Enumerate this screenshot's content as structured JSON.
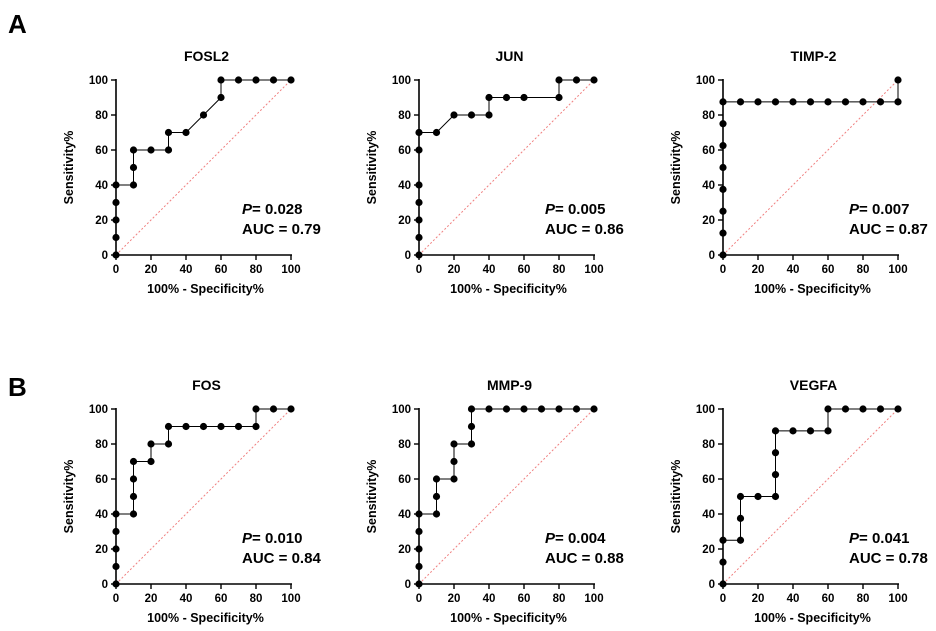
{
  "panels": [
    {
      "letter": "A"
    },
    {
      "letter": "B"
    }
  ],
  "chart_data": [
    {
      "type": "line",
      "panel": "A",
      "title": "FOSL2",
      "xlabel": "100% - Specificity%",
      "ylabel": "Sensitivity%",
      "xlim": [
        0,
        100
      ],
      "ylim": [
        0,
        100
      ],
      "xticks": [
        0,
        20,
        40,
        60,
        80,
        100
      ],
      "yticks": [
        0,
        20,
        40,
        60,
        80,
        100
      ],
      "series": [
        {
          "x": [
            0,
            0,
            0,
            0,
            0,
            10,
            10,
            10,
            20,
            30,
            30,
            40,
            50,
            60,
            60,
            70,
            80,
            90,
            100
          ],
          "y": [
            0,
            10,
            20,
            30,
            40,
            40,
            50,
            60,
            60,
            60,
            70,
            70,
            80,
            90,
            100,
            100,
            100,
            100,
            100
          ]
        }
      ],
      "reference_line": {
        "x": [
          0,
          100
        ],
        "y": [
          0,
          100
        ]
      },
      "p_label": "P",
      "p_value": "= 0.028",
      "auc_label": "AUC = 0.79"
    },
    {
      "type": "line",
      "panel": "A",
      "title": "JUN",
      "xlabel": "100% - Specificity%",
      "ylabel": "Sensitivity%",
      "xlim": [
        0,
        100
      ],
      "ylim": [
        0,
        100
      ],
      "xticks": [
        0,
        20,
        40,
        60,
        80,
        100
      ],
      "yticks": [
        0,
        20,
        40,
        60,
        80,
        100
      ],
      "series": [
        {
          "x": [
            0,
            0,
            0,
            0,
            0,
            0,
            0,
            10,
            20,
            30,
            40,
            40,
            50,
            60,
            80,
            80,
            90,
            100
          ],
          "y": [
            0,
            10,
            20,
            30,
            40,
            60,
            70,
            70,
            80,
            80,
            80,
            90,
            90,
            90,
            90,
            100,
            100,
            100
          ]
        }
      ],
      "reference_line": {
        "x": [
          0,
          100
        ],
        "y": [
          0,
          100
        ]
      },
      "p_label": "P",
      "p_value": "= 0.005",
      "auc_label": "AUC = 0.86"
    },
    {
      "type": "line",
      "panel": "A",
      "title": "TIMP-2",
      "xlabel": "100% - Specificity%",
      "ylabel": "Sensitivity%",
      "xlim": [
        0,
        100
      ],
      "ylim": [
        0,
        100
      ],
      "xticks": [
        0,
        20,
        40,
        60,
        80,
        100
      ],
      "yticks": [
        0,
        20,
        40,
        60,
        80,
        100
      ],
      "series": [
        {
          "x": [
            0,
            0,
            0,
            0,
            0,
            0,
            0,
            0,
            10,
            20,
            30,
            40,
            50,
            60,
            70,
            80,
            90,
            100,
            100
          ],
          "y": [
            0,
            12.5,
            25,
            37.5,
            50,
            62.5,
            75,
            87.5,
            87.5,
            87.5,
            87.5,
            87.5,
            87.5,
            87.5,
            87.5,
            87.5,
            87.5,
            87.5,
            100
          ]
        }
      ],
      "reference_line": {
        "x": [
          0,
          100
        ],
        "y": [
          0,
          100
        ]
      },
      "p_label": "P",
      "p_value": "= 0.007",
      "auc_label": "AUC = 0.87"
    },
    {
      "type": "line",
      "panel": "B",
      "title": "FOS",
      "xlabel": "100% - Specificity%",
      "ylabel": "Sensitivity%",
      "xlim": [
        0,
        100
      ],
      "ylim": [
        0,
        100
      ],
      "xticks": [
        0,
        20,
        40,
        60,
        80,
        100
      ],
      "yticks": [
        0,
        20,
        40,
        60,
        80,
        100
      ],
      "series": [
        {
          "x": [
            0,
            0,
            0,
            0,
            0,
            10,
            10,
            10,
            10,
            20,
            20,
            30,
            30,
            40,
            50,
            60,
            70,
            80,
            80,
            90,
            100
          ],
          "y": [
            0,
            10,
            20,
            30,
            40,
            40,
            50,
            60,
            70,
            70,
            80,
            80,
            90,
            90,
            90,
            90,
            90,
            90,
            100,
            100,
            100
          ]
        }
      ],
      "reference_line": {
        "x": [
          0,
          100
        ],
        "y": [
          0,
          100
        ]
      },
      "p_label": "P",
      "p_value": "= 0.010",
      "auc_label": "AUC = 0.84"
    },
    {
      "type": "line",
      "panel": "B",
      "title": "MMP-9",
      "xlabel": "100% - Specificity%",
      "ylabel": "Sensitivity%",
      "xlim": [
        0,
        100
      ],
      "ylim": [
        0,
        100
      ],
      "xticks": [
        0,
        20,
        40,
        60,
        80,
        100
      ],
      "yticks": [
        0,
        20,
        40,
        60,
        80,
        100
      ],
      "series": [
        {
          "x": [
            0,
            0,
            0,
            0,
            0,
            10,
            10,
            10,
            20,
            20,
            20,
            30,
            30,
            30,
            40,
            50,
            60,
            70,
            80,
            90,
            100
          ],
          "y": [
            0,
            10,
            20,
            30,
            40,
            40,
            50,
            60,
            60,
            70,
            80,
            80,
            90,
            100,
            100,
            100,
            100,
            100,
            100,
            100,
            100
          ]
        }
      ],
      "reference_line": {
        "x": [
          0,
          100
        ],
        "y": [
          0,
          100
        ]
      },
      "p_label": "P",
      "p_value": "= 0.004",
      "auc_label": "AUC = 0.88"
    },
    {
      "type": "line",
      "panel": "B",
      "title": "VEGFA",
      "xlabel": "100% - Specificity%",
      "ylabel": "Sensitivity%",
      "xlim": [
        0,
        100
      ],
      "ylim": [
        0,
        100
      ],
      "xticks": [
        0,
        20,
        40,
        60,
        80,
        100
      ],
      "yticks": [
        0,
        20,
        40,
        60,
        80,
        100
      ],
      "series": [
        {
          "x": [
            0,
            0,
            0,
            10,
            10,
            10,
            20,
            30,
            30,
            30,
            30,
            40,
            50,
            60,
            60,
            70,
            80,
            90,
            100
          ],
          "y": [
            0,
            12.5,
            25,
            25,
            37.5,
            50,
            50,
            50,
            62.5,
            75,
            87.5,
            87.5,
            87.5,
            87.5,
            100,
            100,
            100,
            100,
            100
          ]
        }
      ],
      "reference_line": {
        "x": [
          0,
          100
        ],
        "y": [
          0,
          100
        ]
      },
      "p_label": "P",
      "p_value": "= 0.041",
      "auc_label": "AUC = 0.78"
    }
  ]
}
